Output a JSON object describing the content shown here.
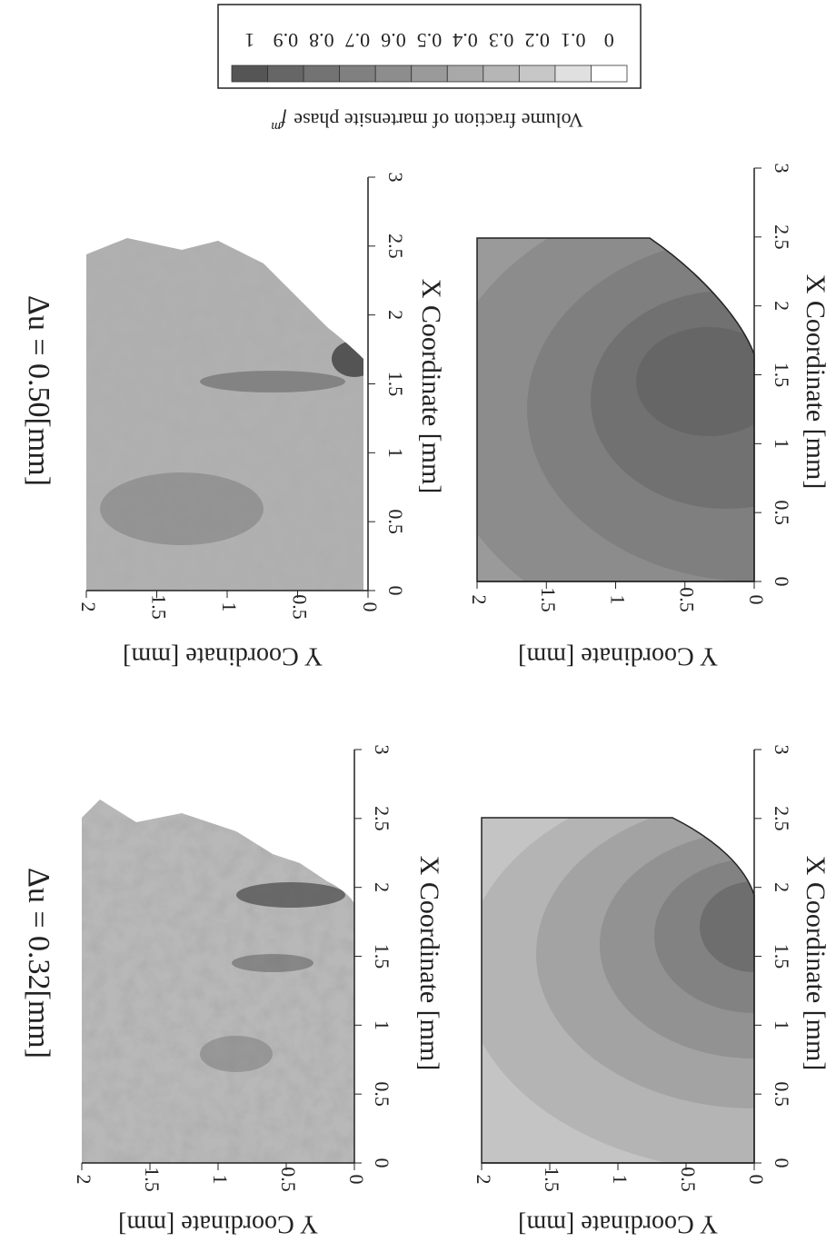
{
  "figure": {
    "titles": [
      "Δu = 0.32[mm]",
      "Δu = 0.50[mm]"
    ],
    "x_axis_label": "X Coordinate [mm]",
    "y_axis_label": "Y Coordinate [mm]",
    "x_ticks": [
      "0",
      "0.5",
      "1",
      "1.5",
      "2",
      "2.5",
      "3"
    ],
    "y_ticks": [
      "2",
      "1.5",
      "1",
      "0.5",
      "0"
    ],
    "colorbar": {
      "label": "Volume fraction of martensite phase",
      "symbol": "f",
      "superscript": "m",
      "levels": [
        "1",
        "0.9",
        "0.8",
        "0.7",
        "0.6",
        "0.5",
        "0.4",
        "0.3",
        "0.2",
        "0.1",
        "0"
      ]
    }
  }
}
